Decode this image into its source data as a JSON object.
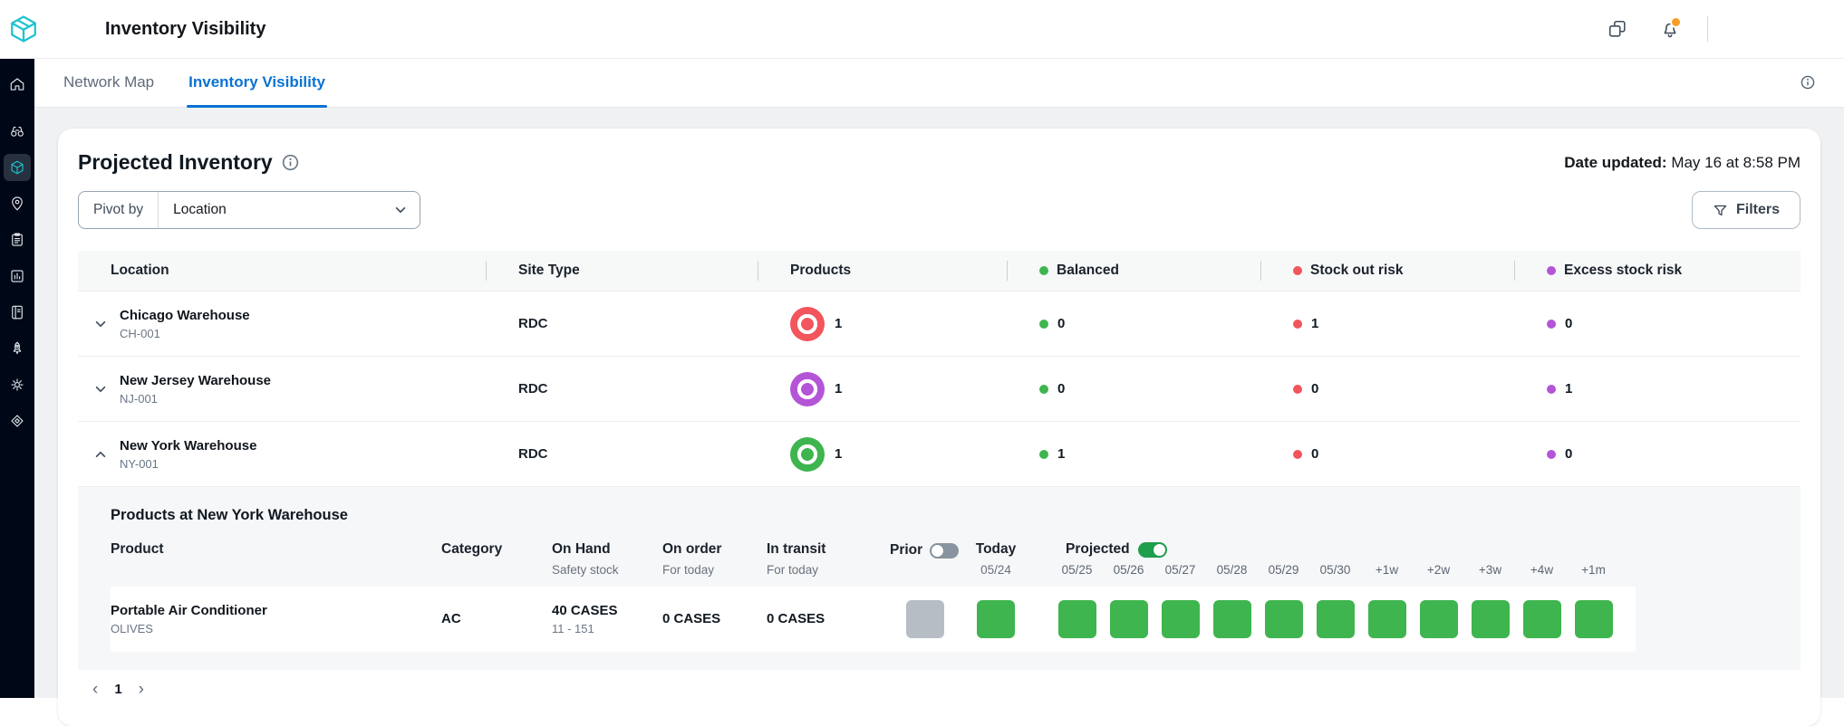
{
  "topbar": {
    "title": "Inventory Visibility",
    "icons": [
      "apps-icon",
      "bell-icon"
    ]
  },
  "sidebar": {
    "items": [
      {
        "icon": "home-icon",
        "selected": false
      },
      {
        "icon": "binoculars-icon",
        "selected": false
      },
      {
        "icon": "package-icon",
        "selected": true
      },
      {
        "icon": "location-pin-icon",
        "selected": false
      },
      {
        "icon": "clipboard-icon",
        "selected": false
      },
      {
        "icon": "bar-chart-icon",
        "selected": false
      },
      {
        "icon": "notebook-icon",
        "selected": false
      },
      {
        "icon": "rocket-icon",
        "selected": false
      },
      {
        "icon": "gear-icon",
        "selected": false
      },
      {
        "icon": "box-icon",
        "selected": false
      }
    ]
  },
  "tabs": [
    {
      "label": "Network Map",
      "active": false
    },
    {
      "label": "Inventory Visibility",
      "active": true
    }
  ],
  "page": {
    "title": "Projected Inventory",
    "date_label": "Date updated:",
    "date_value": "May 16 at 8:58 PM",
    "pivot_label": "Pivot by",
    "pivot_value": "Location",
    "filters_label": "Filters"
  },
  "table": {
    "columns": [
      "Location",
      "Site Type",
      "Products",
      "Balanced",
      "Stock out risk",
      "Excess stock risk"
    ],
    "rows": [
      {
        "name": "Chicago Warehouse",
        "code": "CH-001",
        "site_type": "RDC",
        "products": "1",
        "badge_color": "#f2555c",
        "balanced": "0",
        "stockout": "1",
        "excess": "0",
        "expanded": false
      },
      {
        "name": "New Jersey Warehouse",
        "code": "NJ-001",
        "site_type": "RDC",
        "products": "1",
        "badge_color": "#b455d8",
        "balanced": "0",
        "stockout": "0",
        "excess": "1",
        "expanded": false
      },
      {
        "name": "New York Warehouse",
        "code": "NY-001",
        "site_type": "RDC",
        "products": "1",
        "badge_color": "#3eb54e",
        "balanced": "1",
        "stockout": "0",
        "excess": "0",
        "expanded": true
      }
    ]
  },
  "subtable": {
    "title": "Products at New York Warehouse",
    "col_product": "Product",
    "col_category": "Category",
    "col_on_hand": "On Hand",
    "sub_on_hand": "Safety stock",
    "col_on_order": "On order",
    "sub_on_order": "For today",
    "col_in_transit": "In transit",
    "sub_in_transit": "For today",
    "col_prior": "Prior",
    "col_today": "Today",
    "today_date": "05/24",
    "col_projected": "Projected",
    "dates": [
      "05/25",
      "05/26",
      "05/27",
      "05/28",
      "05/29",
      "05/30",
      "+1w",
      "+2w",
      "+3w",
      "+4w",
      "+1m"
    ],
    "toggles": {
      "prior": false,
      "projected": true
    },
    "row": {
      "product": "Portable Air Conditioner",
      "brand": "OLIVES",
      "category": "AC",
      "on_hand": "40 CASES",
      "safety_range": "11 - 151",
      "on_order": "0 CASES",
      "in_transit": "0 CASES",
      "prior_status": "none",
      "today_status": "balanced",
      "projected": [
        "balanced",
        "balanced",
        "balanced",
        "balanced",
        "balanced",
        "balanced",
        "balanced",
        "balanced",
        "balanced",
        "balanced",
        "balanced"
      ]
    }
  },
  "pagination": {
    "prev": "‹",
    "page": "1",
    "next": "›"
  },
  "colors": {
    "accent_blue": "#0972d3",
    "balanced_green": "#3eb54e",
    "stockout_red": "#f2555c",
    "excess_purple": "#b455d8",
    "prior_gray": "#b6bdc5",
    "toggle_on_green": "#1f9e4c",
    "notification_orange": "#f89c24",
    "logo_teal": "#1ec3cf"
  }
}
